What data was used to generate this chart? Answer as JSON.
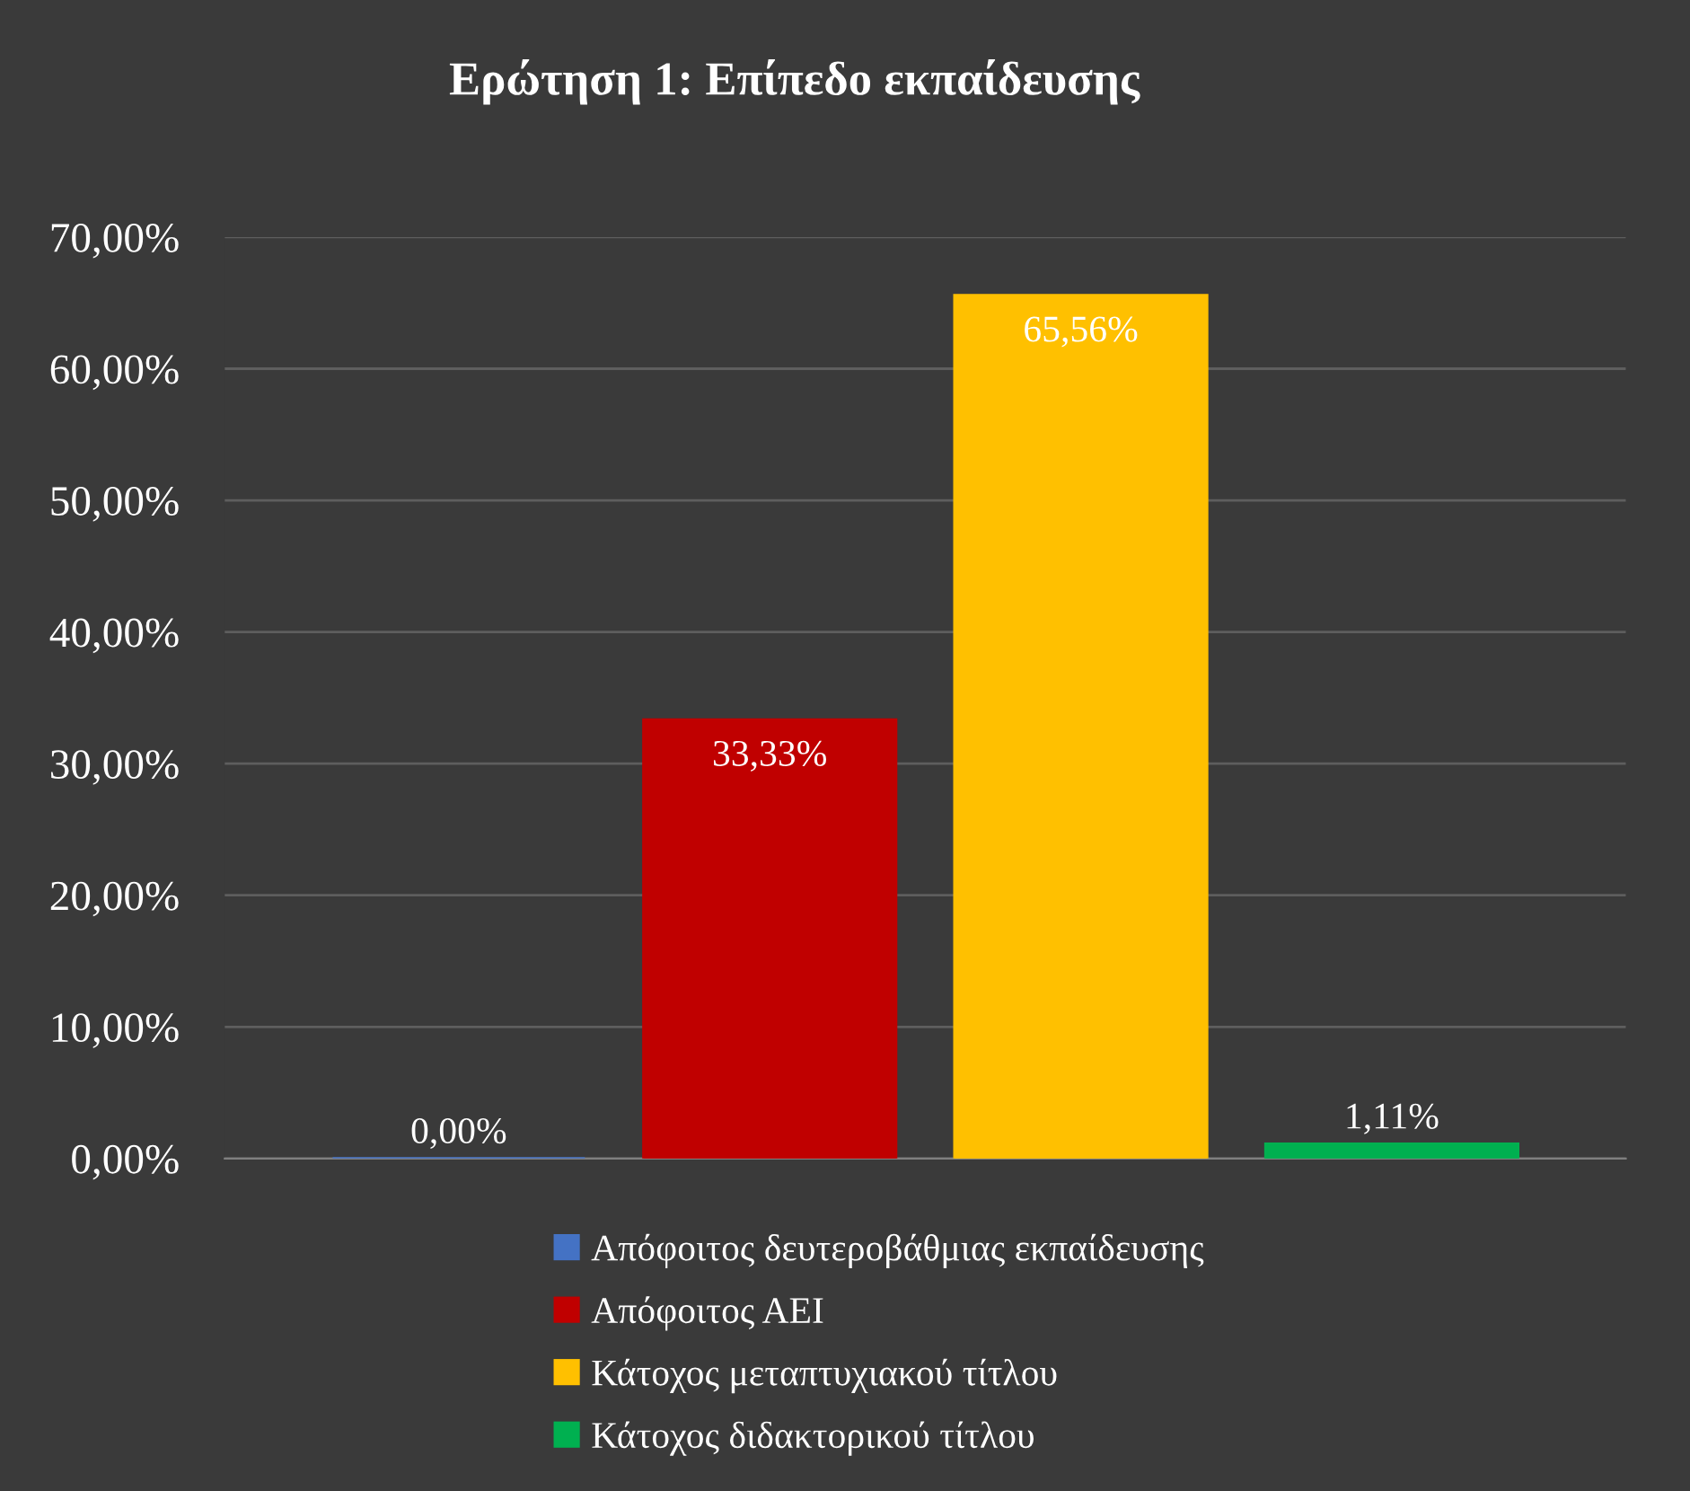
{
  "chart_data": {
    "type": "bar",
    "title": "Ερώτηση 1: Επίπεδο εκπαίδευσης",
    "categories": [
      null
    ],
    "series": [
      {
        "name": "Απόφοιτος δευτεροβάθμιας εκπαίδευσης",
        "color": "#4472c4",
        "values": [
          0
        ],
        "value_labels": [
          "0,00%"
        ]
      },
      {
        "name": "Απόφοιτος ΑΕΙ",
        "color": "#c00000",
        "values": [
          33.33
        ],
        "value_labels": [
          "33,33%"
        ]
      },
      {
        "name": "Κάτοχος μεταπτυχιακού τίτλου",
        "color": "#ffc000",
        "values": [
          65.56
        ],
        "value_labels": [
          "65,56%"
        ]
      },
      {
        "name": "Κάτοχος διδακτορικού τίτλου",
        "color": "#00b050",
        "values": [
          1.11
        ],
        "value_labels": [
          "1,11%"
        ]
      }
    ],
    "ylim": [
      0,
      70
    ],
    "yticks": [
      {
        "value": 0,
        "label": "0,00%"
      },
      {
        "value": 10,
        "label": "10,00%"
      },
      {
        "value": 20,
        "label": "20,00%"
      },
      {
        "value": 30,
        "label": "30,00%"
      },
      {
        "value": 40,
        "label": "40,00%"
      },
      {
        "value": 50,
        "label": "50,00%"
      },
      {
        "value": 60,
        "label": "60,00%"
      },
      {
        "value": 70,
        "label": "70,00%"
      }
    ],
    "grid": "y",
    "legend": "bottom",
    "tick_labels": "y"
  }
}
